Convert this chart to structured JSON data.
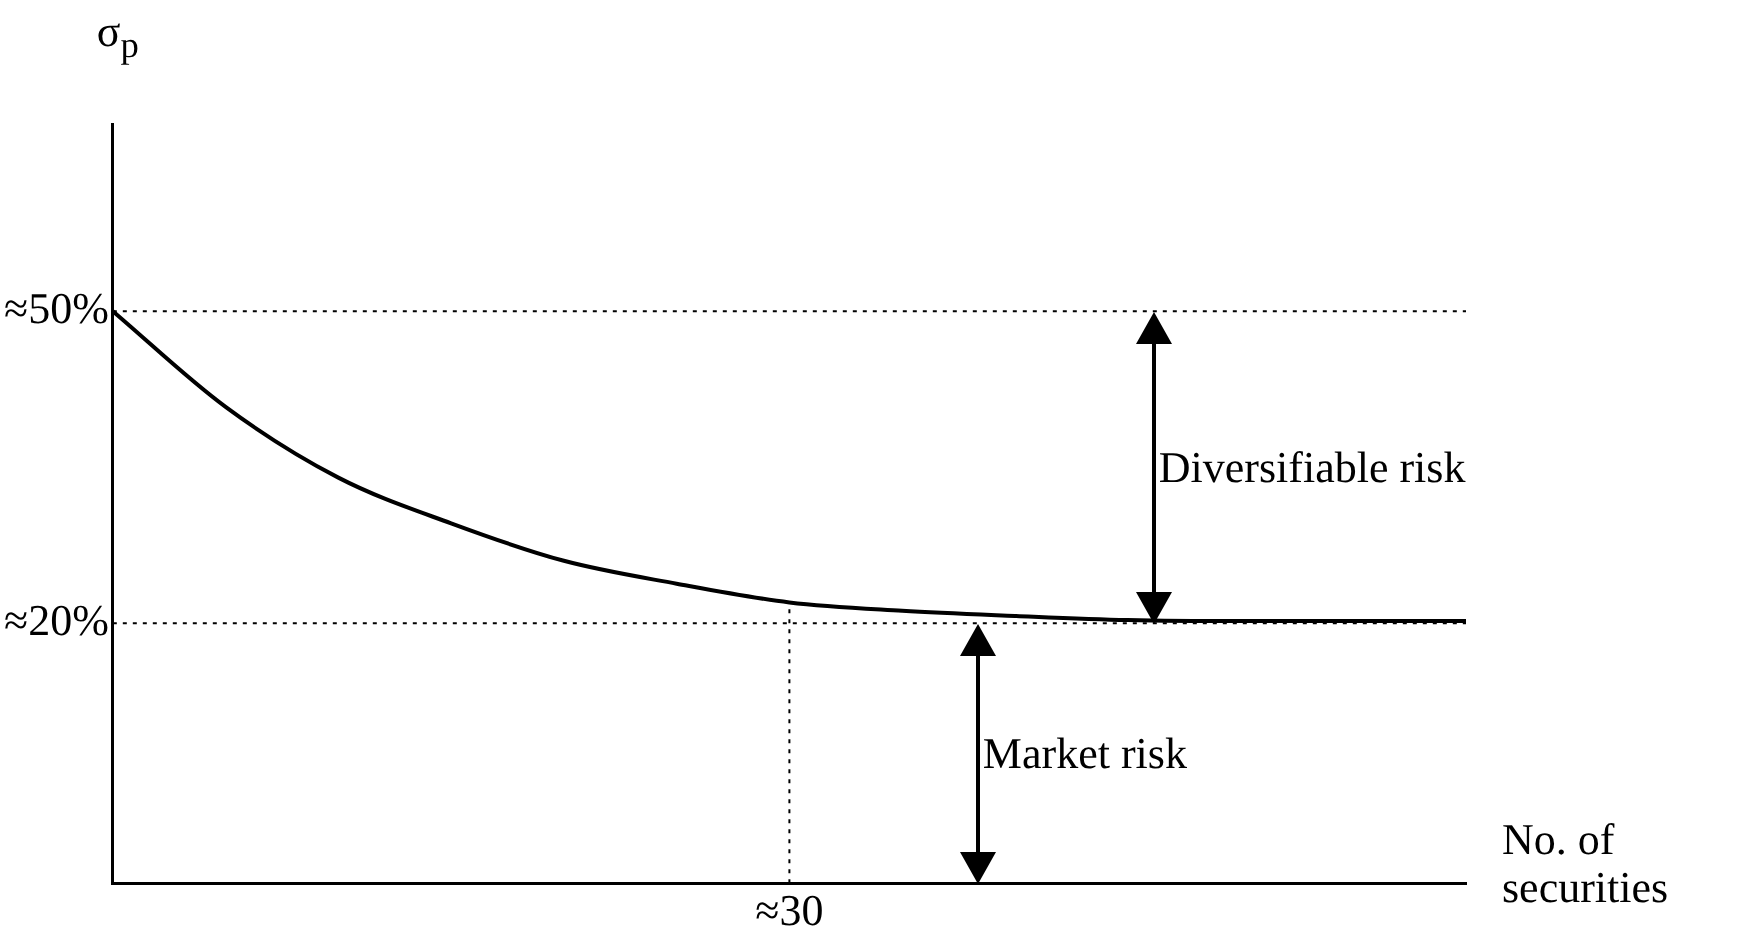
{
  "chart_data": {
    "type": "line",
    "ylabel": "σ$_{p}$",
    "xlabel": "No. of securities",
    "categories": [
      null,
      null,
      null,
      null,
      null,
      null,
      "≈30",
      null,
      null,
      null,
      null,
      null,
      null
    ],
    "series": [
      {
        "color": "#000000",
        "values": [
          50,
          40.8,
          34,
          29.6,
          26,
          23.8,
          22,
          21.2,
          20.7,
          20.3,
          20.2,
          20.2,
          20.2
        ]
      }
    ],
    "ylim": [
      -5,
      68
    ],
    "yticks": [
      {
        "value": 50,
        "label": "≈50%"
      },
      {
        "value": 20,
        "label": "≈20%"
      }
    ],
    "ref_lines": [
      {
        "axis": "y",
        "value": 50,
        "line_style": "dotted"
      },
      {
        "axis": "y",
        "value": 20,
        "line_style": "dotted"
      },
      {
        "axis": "x",
        "value": "≈30",
        "line_style": "dotted"
      }
    ],
    "annotations": [
      "Diversifiable risk",
      "Market risk"
    ],
    "grid": false,
    "legend": false,
    "marker": "none",
    "line_style": "solid"
  }
}
